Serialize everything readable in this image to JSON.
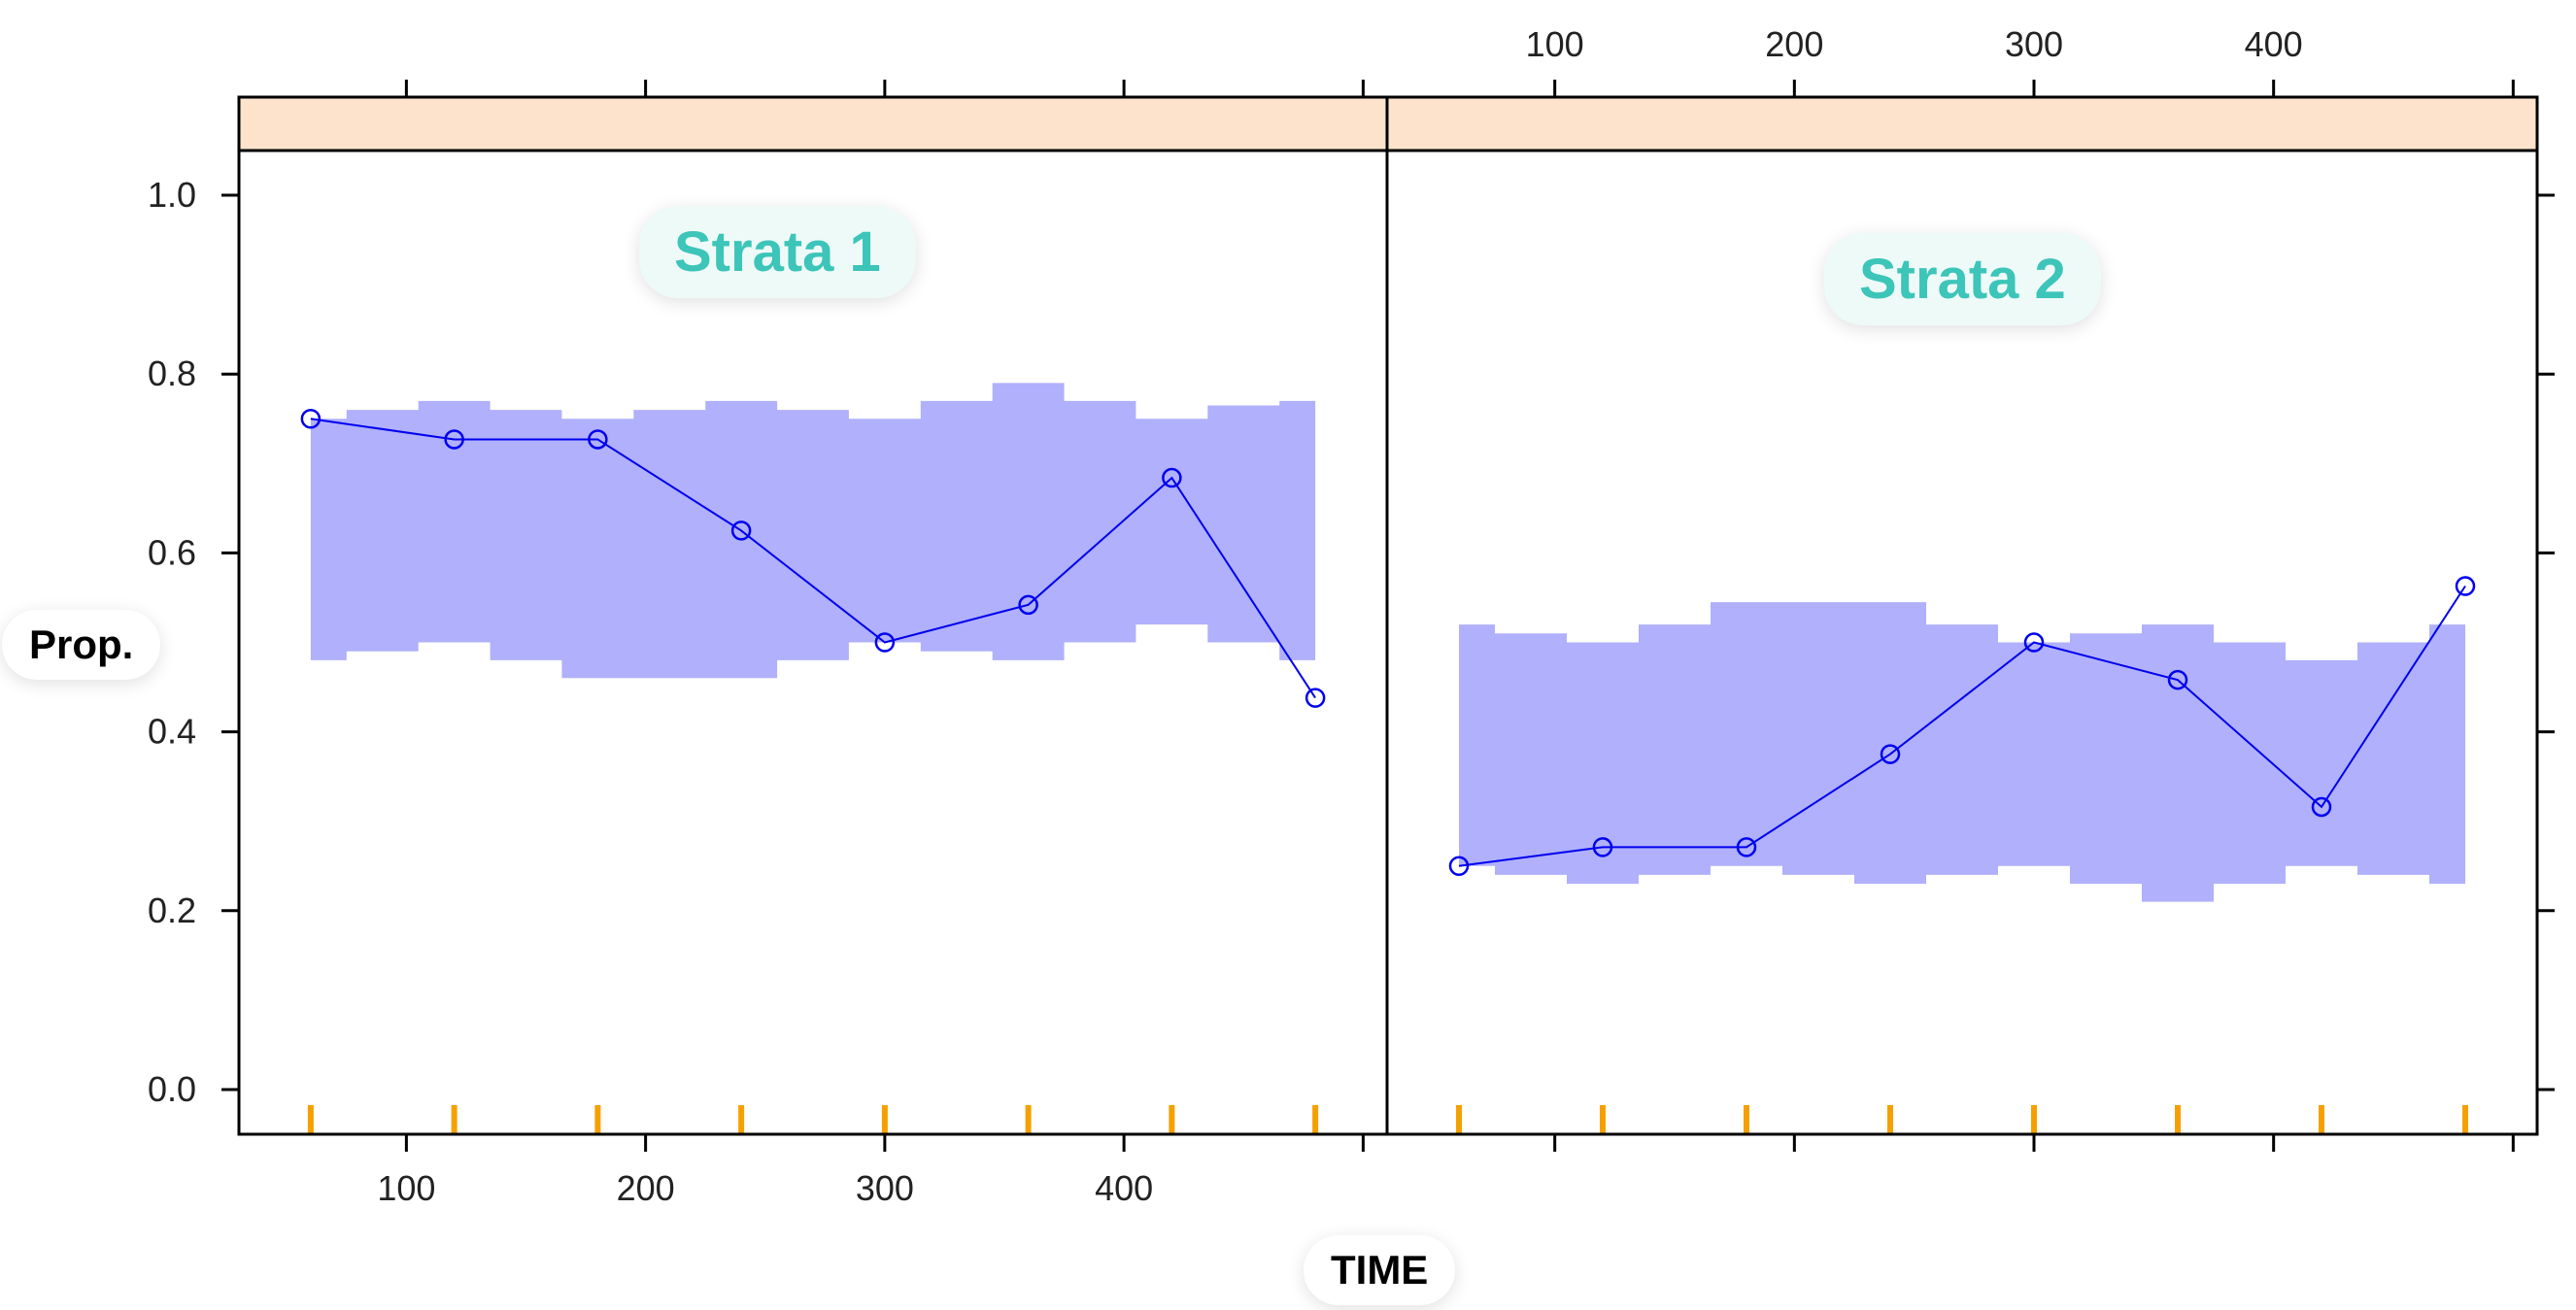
{
  "chart_data": {
    "type": "line",
    "xlabel": "TIME",
    "ylabel": "Prop.",
    "xlim": [
      30,
      510
    ],
    "ylim": [
      -0.05,
      1.05
    ],
    "x_ticks": [
      100,
      200,
      300,
      400
    ],
    "y_ticks": [
      0.0,
      0.2,
      0.4,
      0.6,
      0.8,
      1.0
    ],
    "y_tick_labels": [
      "0.0",
      "0.2",
      "0.4",
      "0.6",
      "0.8",
      "1.0"
    ],
    "grid": false,
    "colors": {
      "line": "#0000ee",
      "band": "#b0b0fc",
      "strip": "#fde3cc",
      "rug": "#f5a000",
      "label_text": "#3cc5b8",
      "label_bg": "#eefaf8"
    },
    "rug_x": [
      60,
      120,
      180,
      240,
      300,
      360,
      420,
      480
    ],
    "panels": [
      {
        "label": "Strata 1",
        "x": [
          60,
          120,
          180,
          240,
          300,
          360,
          420,
          480
        ],
        "observed": [
          0.75,
          0.727,
          0.727,
          0.625,
          0.5,
          0.542,
          0.684,
          0.438
        ],
        "band_x": [
          60,
          90,
          120,
          150,
          180,
          210,
          240,
          270,
          300,
          330,
          360,
          390,
          420,
          450,
          480
        ],
        "band_upper": [
          0.75,
          0.76,
          0.77,
          0.76,
          0.75,
          0.76,
          0.77,
          0.76,
          0.75,
          0.77,
          0.79,
          0.77,
          0.75,
          0.765,
          0.77
        ],
        "band_lower": [
          0.48,
          0.49,
          0.5,
          0.48,
          0.46,
          0.46,
          0.46,
          0.48,
          0.5,
          0.49,
          0.48,
          0.5,
          0.52,
          0.5,
          0.48
        ]
      },
      {
        "label": "Strata 2",
        "x": [
          60,
          120,
          180,
          240,
          300,
          360,
          420,
          480
        ],
        "observed": [
          0.25,
          0.271,
          0.271,
          0.375,
          0.5,
          0.458,
          0.316,
          0.563
        ],
        "band_x": [
          60,
          90,
          120,
          150,
          180,
          210,
          240,
          270,
          300,
          330,
          360,
          390,
          420,
          450,
          480
        ],
        "band_upper": [
          0.52,
          0.51,
          0.5,
          0.52,
          0.545,
          0.545,
          0.545,
          0.52,
          0.5,
          0.51,
          0.52,
          0.5,
          0.48,
          0.5,
          0.52
        ],
        "band_lower": [
          0.25,
          0.24,
          0.23,
          0.24,
          0.25,
          0.24,
          0.23,
          0.24,
          0.25,
          0.23,
          0.21,
          0.23,
          0.25,
          0.24,
          0.23
        ]
      }
    ]
  }
}
